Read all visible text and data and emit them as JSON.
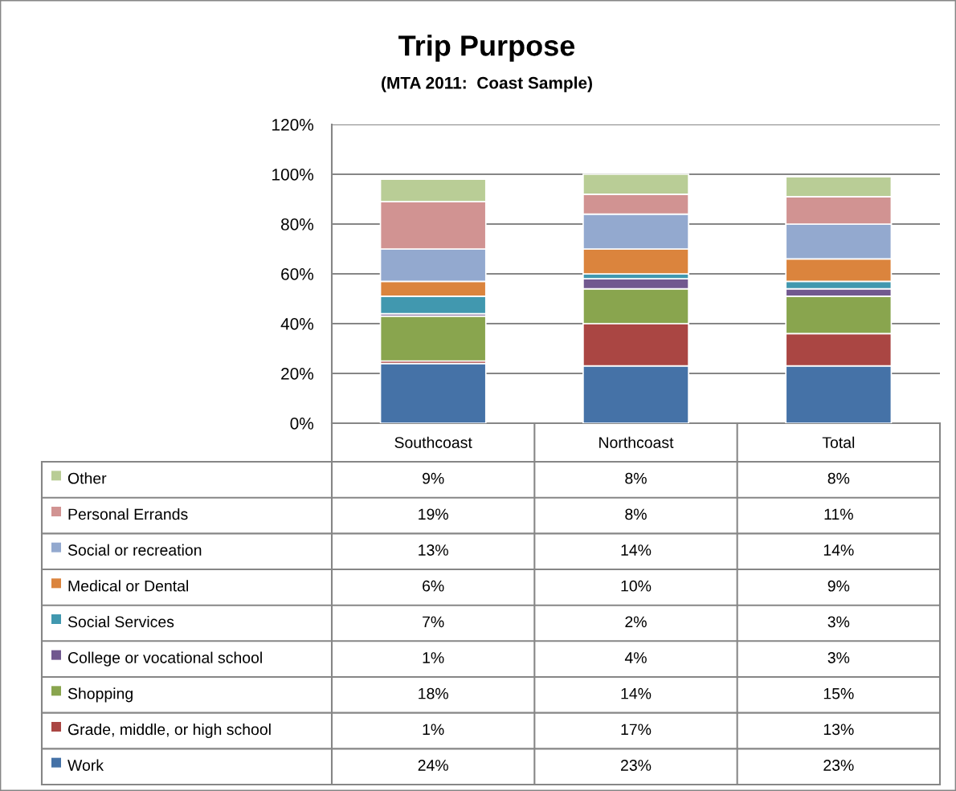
{
  "chart_data": {
    "type": "bar",
    "title": "Trip Purpose",
    "subtitle": "(MTA 2011:  Coast Sample)",
    "categories": [
      "Southcoast",
      "Northcoast",
      "Total"
    ],
    "stacked": true,
    "series": [
      {
        "name": "Work",
        "color": "#4572a7",
        "values": [
          24,
          23,
          23
        ],
        "value_labels": [
          "24%",
          "23%",
          "23%"
        ]
      },
      {
        "name": "Grade, middle, or high school",
        "color": "#aa4643",
        "values": [
          1,
          17,
          13
        ],
        "value_labels": [
          "1%",
          "17%",
          "13%"
        ]
      },
      {
        "name": "Shopping",
        "color": "#89a54e",
        "values": [
          18,
          14,
          15
        ],
        "value_labels": [
          "18%",
          "14%",
          "15%"
        ]
      },
      {
        "name": "College or vocational school",
        "color": "#71588f",
        "values": [
          1,
          4,
          3
        ],
        "value_labels": [
          "1%",
          "4%",
          "3%"
        ]
      },
      {
        "name": "Social Services",
        "color": "#4198af",
        "values": [
          7,
          2,
          3
        ],
        "value_labels": [
          "7%",
          "2%",
          "3%"
        ]
      },
      {
        "name": "Medical or Dental",
        "color": "#db843d",
        "values": [
          6,
          10,
          9
        ],
        "value_labels": [
          "6%",
          "10%",
          "9%"
        ]
      },
      {
        "name": "Social or recreation",
        "color": "#93a9cf",
        "values": [
          13,
          14,
          14
        ],
        "value_labels": [
          "13%",
          "14%",
          "14%"
        ]
      },
      {
        "name": "Personal Errands",
        "color": "#d19392",
        "values": [
          19,
          8,
          11
        ],
        "value_labels": [
          "19%",
          "8%",
          "11%"
        ]
      },
      {
        "name": "Other",
        "color": "#b9cd96",
        "values": [
          9,
          8,
          8
        ],
        "value_labels": [
          "9%",
          "8%",
          "8%"
        ]
      }
    ],
    "ylim": [
      0,
      120
    ],
    "yticks": [
      {
        "value": 0,
        "label": "0%"
      },
      {
        "value": 20,
        "label": "20%"
      },
      {
        "value": 40,
        "label": "40%"
      },
      {
        "value": 60,
        "label": "60%"
      },
      {
        "value": 80,
        "label": "80%"
      },
      {
        "value": 100,
        "label": "100%"
      },
      {
        "value": 120,
        "label": "120%"
      }
    ],
    "grid": "y",
    "legend": "bottom"
  }
}
